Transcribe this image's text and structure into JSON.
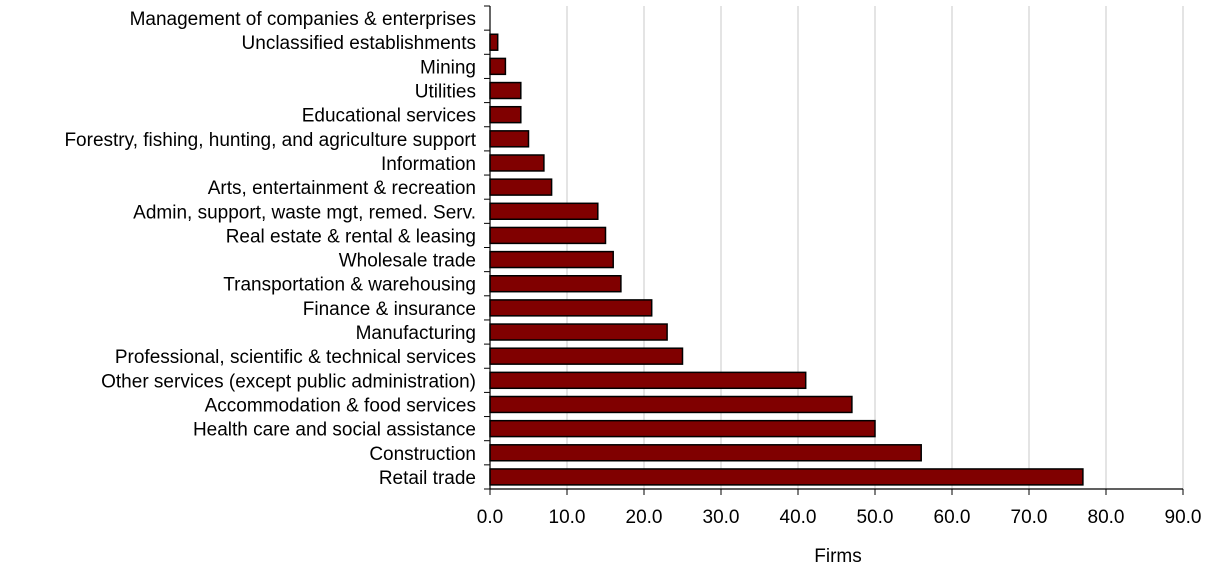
{
  "chart_data": {
    "type": "bar",
    "orientation": "horizontal",
    "title": "",
    "xlabel": "Firms",
    "ylabel": "",
    "xlim": [
      0,
      90
    ],
    "x_ticks": [
      "0.0",
      "10.0",
      "20.0",
      "30.0",
      "40.0",
      "50.0",
      "60.0",
      "70.0",
      "80.0",
      "90.0"
    ],
    "grid": "vertical gridlines",
    "legend": "none",
    "bar_color": "#800000",
    "categories": [
      "Management of companies & enterprises",
      "Unclassified establishments",
      "Mining",
      "Utilities",
      "Educational services",
      "Forestry, fishing, hunting, and agriculture support",
      "Information",
      "Arts, entertainment & recreation",
      "Admin, support, waste mgt, remed. Serv.",
      "Real estate & rental & leasing",
      "Wholesale trade",
      "Transportation & warehousing",
      "Finance & insurance",
      "Manufacturing",
      "Professional, scientific & technical services",
      "Other services (except public administration)",
      "Accommodation & food services",
      "Health care and social assistance",
      "Construction",
      "Retail trade"
    ],
    "values": [
      0,
      1,
      2,
      4,
      4,
      5,
      7,
      8,
      14,
      15,
      16,
      17,
      21,
      23,
      25,
      41,
      47,
      50,
      56,
      77
    ]
  }
}
